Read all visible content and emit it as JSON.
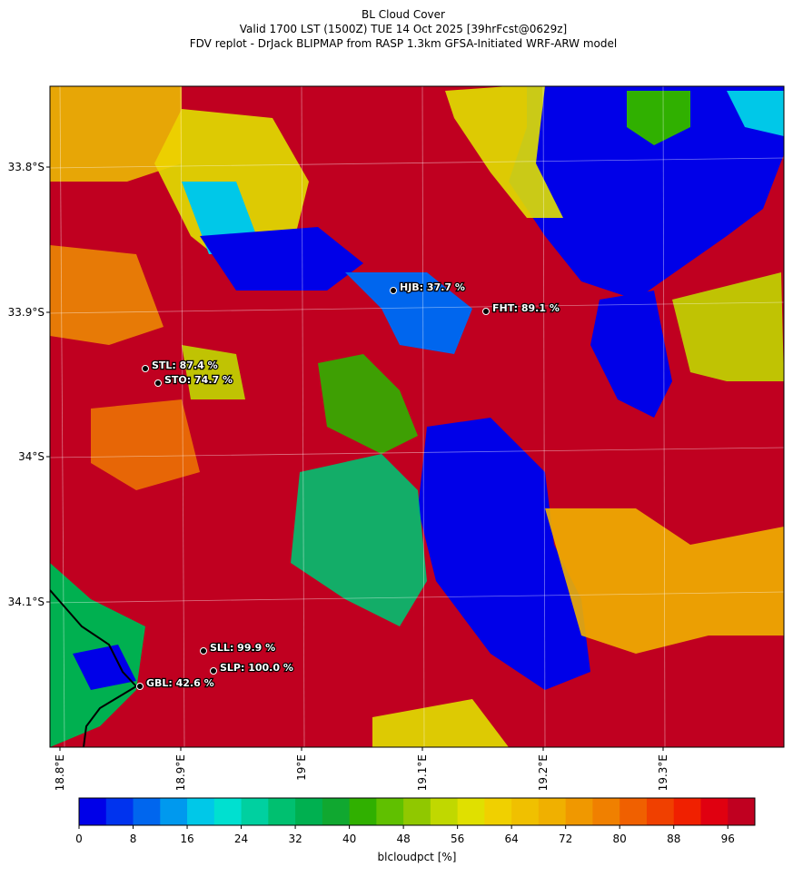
{
  "header": {
    "lines": [
      "BL Cloud Cover",
      "Valid 1700 LST (1500Z) TUE 14 Oct 2025 [39hrFcst@0629z]",
      "FDV replot - DrJack BLIPMAP from RASP 1.3km GFSA-Initiated WRF-ARW model"
    ]
  },
  "map": {
    "lat_labels": [
      "33.8°S",
      "33.9°S",
      "34°S",
      "34.1°S"
    ],
    "lon_labels": [
      "18.8°E",
      "18.9°E",
      "19°E",
      "19.1°E",
      "19.2°E",
      "19.3°E"
    ],
    "stations": [
      {
        "label": "STL: 87.4 %"
      },
      {
        "label": "STO: 74.7 %"
      },
      {
        "label": "HJB: 37.7 %"
      },
      {
        "label": "FHT: 89.1 %"
      },
      {
        "label": "SLL: 99.9 %"
      },
      {
        "label": "SLP: 100.0 %"
      },
      {
        "label": "GBL: 42.6 %"
      }
    ],
    "colorbar": {
      "label": "blcloudpct [%]",
      "range": [
        0,
        100
      ],
      "ticks": [
        0,
        8,
        16,
        24,
        32,
        40,
        48,
        56,
        64,
        72,
        80,
        88,
        96
      ],
      "colors": [
        "#0000e8",
        "#0033ee",
        "#0066ee",
        "#0099ee",
        "#00c8e8",
        "#00e0d0",
        "#00d0a0",
        "#00c070",
        "#00b050",
        "#10a830",
        "#30b000",
        "#60c000",
        "#90c800",
        "#c0d800",
        "#e0e000",
        "#f0d000",
        "#f0c000",
        "#f0b000",
        "#f09800",
        "#f08000",
        "#f06000",
        "#f04000",
        "#f02000",
        "#e00010",
        "#c00020"
      ]
    }
  }
}
